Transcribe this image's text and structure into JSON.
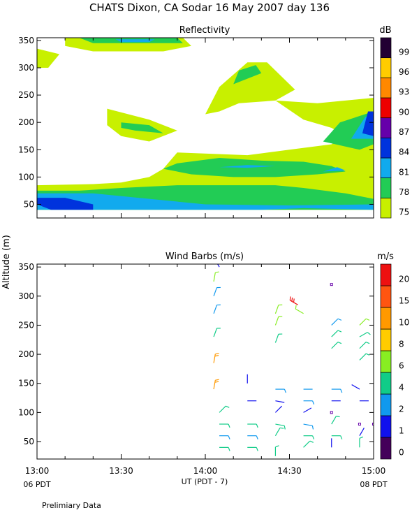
{
  "title": "CHATS Dixon, CA  Sodar  16 May 2007  day 136",
  "footer_note": "Prelimiary Data",
  "shared_ylabel": "Altitude  (m)",
  "xlabel": "UT  (PDT - 7)",
  "x_ticks": [
    "13:00",
    "13:30",
    "14:00",
    "14:30",
    "15:00"
  ],
  "x_start_label": "06 PDT",
  "x_end_label": "08 PDT",
  "chart_data": [
    {
      "type": "heatmap",
      "title": "Reflectivity",
      "xlim": [
        "13:00",
        "15:00"
      ],
      "ylim": [
        25,
        355
      ],
      "y_ticks": [
        50,
        100,
        150,
        200,
        250,
        300,
        350
      ],
      "colorbar": {
        "unit": "dB",
        "labels": [
          75,
          78,
          81,
          84,
          87,
          90,
          93,
          96,
          99
        ],
        "colors": [
          "#c8f000",
          "#22cc55",
          "#11aaee",
          "#0033dd",
          "#6600aa",
          "#ee0000",
          "#ff8800",
          "#ffcc00",
          "#220033"
        ]
      },
      "contours": [
        {
          "level": 75,
          "color": "#c8f000",
          "points": [
            [
              "13:00",
              40
            ],
            [
              "15:00",
              40
            ],
            [
              "15:00",
              245
            ],
            [
              "14:40",
              235
            ],
            [
              "14:25",
              240
            ],
            [
              "14:35",
              205
            ],
            [
              "14:45",
              190
            ],
            [
              "14:50",
              175
            ],
            [
              "14:45",
              160
            ],
            [
              "14:30",
              150
            ],
            [
              "14:15",
              140
            ],
            [
              "13:50",
              145
            ],
            [
              "13:45",
              115
            ],
            [
              "13:40",
              100
            ],
            [
              "13:30",
              90
            ],
            [
              "13:20",
              87
            ],
            [
              "13:00",
              85
            ]
          ]
        },
        {
          "level": 75,
          "color": "#c8f000",
          "points": [
            [
              "14:00",
              215
            ],
            [
              "14:05",
              265
            ],
            [
              "14:15",
              310
            ],
            [
              "14:22",
              310
            ],
            [
              "14:32",
              260
            ],
            [
              "14:25",
              240
            ],
            [
              "14:12",
              235
            ],
            [
              "14:05",
              220
            ]
          ]
        },
        {
          "level": 75,
          "color": "#c8f000",
          "points": [
            [
              "13:25",
              225
            ],
            [
              "13:40",
              205
            ],
            [
              "13:50",
              185
            ],
            [
              "13:40",
              165
            ],
            [
              "13:30",
              175
            ],
            [
              "13:25",
              195
            ]
          ]
        },
        {
          "level": 75,
          "color": "#c8f000",
          "points": [
            [
              "13:10",
              355
            ],
            [
              "13:52",
              355
            ],
            [
              "13:55",
              340
            ],
            [
              "13:45",
              330
            ],
            [
              "13:20",
              330
            ],
            [
              "13:10",
              340
            ]
          ]
        },
        {
          "level": 75,
          "color": "#c8f000",
          "points": [
            [
              "13:00",
              335
            ],
            [
              "13:08",
              325
            ],
            [
              "13:04",
              300
            ],
            [
              "13:00",
              300
            ]
          ]
        },
        {
          "level": 78,
          "color": "#22cc55",
          "points": [
            [
              "13:00",
              40
            ],
            [
              "15:00",
              40
            ],
            [
              "15:00",
              60
            ],
            [
              "14:50",
              70
            ],
            [
              "14:35",
              80
            ],
            [
              "14:25",
              85
            ],
            [
              "14:10",
              85
            ],
            [
              "13:50",
              85
            ],
            [
              "13:30",
              80
            ],
            [
              "13:15",
              75
            ],
            [
              "13:00",
              75
            ]
          ]
        },
        {
          "level": 78,
          "color": "#22cc55",
          "points": [
            [
              "13:50",
              125
            ],
            [
              "14:05",
              135
            ],
            [
              "14:20",
              130
            ],
            [
              "14:35",
              128
            ],
            [
              "14:45",
              120
            ],
            [
              "14:50",
              110
            ],
            [
              "14:40",
              105
            ],
            [
              "14:25",
              100
            ],
            [
              "14:10",
              100
            ],
            [
              "13:55",
              105
            ],
            [
              "13:45",
              115
            ]
          ]
        },
        {
          "level": 78,
          "color": "#22cc55",
          "points": [
            [
              "14:42",
              165
            ],
            [
              "14:48",
              200
            ],
            [
              "15:00",
              220
            ],
            [
              "15:00",
              160
            ],
            [
              "14:55",
              150
            ]
          ]
        },
        {
          "level": 78,
          "color": "#22cc55",
          "points": [
            [
              "13:30",
              200
            ],
            [
              "13:40",
              195
            ],
            [
              "13:45",
              180
            ],
            [
              "13:35",
              185
            ],
            [
              "13:30",
              190
            ]
          ]
        },
        {
          "level": 78,
          "color": "#22cc55",
          "points": [
            [
              "14:10",
              270
            ],
            [
              "14:20",
              290
            ],
            [
              "14:18",
              305
            ],
            [
              "14:12",
              295
            ]
          ]
        },
        {
          "level": 78,
          "color": "#22cc55",
          "points": [
            [
              "13:15",
              355
            ],
            [
              "13:50",
              355
            ],
            [
              "13:52",
              345
            ],
            [
              "13:20",
              345
            ]
          ]
        },
        {
          "level": 81,
          "color": "#11aaee",
          "points": [
            [
              "13:00",
              40
            ],
            [
              "14:20",
              40
            ],
            [
              "14:35",
              43
            ],
            [
              "15:00",
              40
            ],
            [
              "15:00",
              50
            ],
            [
              "14:30",
              48
            ],
            [
              "14:00",
              50
            ],
            [
              "13:40",
              60
            ],
            [
              "13:20",
              70
            ],
            [
              "13:00",
              70
            ]
          ]
        },
        {
          "level": 81,
          "color": "#11aaee",
          "points": [
            [
              "14:05",
              118
            ],
            [
              "14:15",
              122
            ],
            [
              "14:25",
              120
            ],
            [
              "14:15",
              117
            ]
          ]
        },
        {
          "level": 81,
          "color": "#11aaee",
          "points": [
            [
              "14:42",
              110
            ],
            [
              "14:47",
              118
            ],
            [
              "14:50",
              112
            ]
          ]
        },
        {
          "level": 81,
          "color": "#11aaee",
          "points": [
            [
              "14:52",
              170
            ],
            [
              "14:57",
              210
            ],
            [
              "15:00",
              215
            ],
            [
              "15:00",
              170
            ]
          ]
        },
        {
          "level": 81,
          "color": "#11aaee",
          "points": [
            [
              "13:28",
              352
            ],
            [
              "13:42",
              352
            ],
            [
              "13:40",
              347
            ],
            [
              "13:30",
              347
            ]
          ]
        },
        {
          "level": 84,
          "color": "#0033dd",
          "points": [
            [
              "13:00",
              62
            ],
            [
              "13:10",
              62
            ],
            [
              "13:20",
              50
            ],
            [
              "13:20",
              40
            ],
            [
              "13:05",
              40
            ],
            [
              "13:00",
              50
            ]
          ]
        },
        {
          "level": 84,
          "color": "#0033dd",
          "points": [
            [
              "14:56",
              180
            ],
            [
              "14:58",
              220
            ],
            [
              "15:00",
              220
            ],
            [
              "15:00",
              175
            ]
          ]
        }
      ]
    },
    {
      "type": "scatter",
      "title": "Wind Barbs (m/s)",
      "xlim": [
        "13:00",
        "15:00"
      ],
      "ylim": [
        20,
        355
      ],
      "y_ticks": [
        50,
        100,
        150,
        200,
        250,
        300,
        350
      ],
      "colorbar": {
        "unit": "m/s",
        "labels": [
          0,
          1,
          2,
          4,
          6,
          8,
          10,
          15,
          20
        ],
        "colors": [
          "#44005a",
          "#1111ee",
          "#1199ee",
          "#11cc88",
          "#88ee22",
          "#ffcc00",
          "#ff9900",
          "#ff5511",
          "#ee1111"
        ]
      },
      "barbs": [
        {
          "time": "14:05",
          "alt": 40,
          "speed": 4,
          "dir": 90
        },
        {
          "time": "14:05",
          "alt": 60,
          "speed": 3,
          "dir": 90
        },
        {
          "time": "14:05",
          "alt": 80,
          "speed": 4,
          "dir": 90
        },
        {
          "time": "14:05",
          "alt": 100,
          "speed": 5,
          "dir": 45
        },
        {
          "time": "14:03",
          "alt": 140,
          "speed": 12,
          "dir": 10
        },
        {
          "time": "14:03",
          "alt": 185,
          "speed": 10,
          "dir": 10
        },
        {
          "time": "14:03",
          "alt": 230,
          "speed": 4,
          "dir": 20
        },
        {
          "time": "14:03",
          "alt": 270,
          "speed": 3,
          "dir": 20
        },
        {
          "time": "14:03",
          "alt": 300,
          "speed": 3,
          "dir": 20
        },
        {
          "time": "14:03",
          "alt": 325,
          "speed": 6,
          "dir": 10
        },
        {
          "time": "14:05",
          "alt": 350,
          "speed": 1,
          "dir": 330
        },
        {
          "time": "14:15",
          "alt": 40,
          "speed": 4,
          "dir": 90
        },
        {
          "time": "14:15",
          "alt": 60,
          "speed": 3,
          "dir": 90
        },
        {
          "time": "14:15",
          "alt": 80,
          "speed": 4,
          "dir": 90
        },
        {
          "time": "14:15",
          "alt": 120,
          "speed": 1,
          "dir": 90
        },
        {
          "time": "14:15",
          "alt": 150,
          "speed": 1,
          "dir": 0
        },
        {
          "time": "14:25",
          "alt": 25,
          "speed": 4,
          "dir": 0
        },
        {
          "time": "14:25",
          "alt": 60,
          "speed": 4,
          "dir": 30
        },
        {
          "time": "14:25",
          "alt": 80,
          "speed": 4,
          "dir": 100
        },
        {
          "time": "14:25",
          "alt": 100,
          "speed": 1,
          "dir": 45
        },
        {
          "time": "14:25",
          "alt": 120,
          "speed": 1,
          "dir": 100
        },
        {
          "time": "14:25",
          "alt": 140,
          "speed": 3,
          "dir": 90
        },
        {
          "time": "14:25",
          "alt": 220,
          "speed": 5,
          "dir": 20
        },
        {
          "time": "14:25",
          "alt": 250,
          "speed": 6,
          "dir": 20
        },
        {
          "time": "14:25",
          "alt": 270,
          "speed": 6,
          "dir": 20
        },
        {
          "time": "14:35",
          "alt": 40,
          "speed": 4,
          "dir": 45
        },
        {
          "time": "14:35",
          "alt": 60,
          "speed": 4,
          "dir": 90
        },
        {
          "time": "14:35",
          "alt": 80,
          "speed": 3,
          "dir": 100
        },
        {
          "time": "14:35",
          "alt": 100,
          "speed": 1,
          "dir": 60
        },
        {
          "time": "14:35",
          "alt": 120,
          "speed": 3,
          "dir": 90
        },
        {
          "time": "14:35",
          "alt": 140,
          "speed": 2,
          "dir": 90
        },
        {
          "time": "14:35",
          "alt": 270,
          "speed": 6,
          "dir": 300
        },
        {
          "time": "14:33",
          "alt": 285,
          "speed": 20,
          "dir": 300
        },
        {
          "time": "14:45",
          "alt": 40,
          "speed": 1,
          "dir": 0
        },
        {
          "time": "14:45",
          "alt": 60,
          "speed": 4,
          "dir": 90
        },
        {
          "time": "14:45",
          "alt": 80,
          "speed": 4,
          "dir": 30
        },
        {
          "time": "14:45",
          "alt": 120,
          "speed": 1,
          "dir": 90
        },
        {
          "time": "14:45",
          "alt": 140,
          "speed": 3,
          "dir": 90
        },
        {
          "time": "14:45",
          "alt": 210,
          "speed": 5,
          "dir": 45
        },
        {
          "time": "14:45",
          "alt": 230,
          "speed": 5,
          "dir": 45
        },
        {
          "time": "14:45",
          "alt": 250,
          "speed": 3,
          "dir": 45
        },
        {
          "time": "14:45",
          "alt": 320,
          "speed": 0,
          "dir": 0
        },
        {
          "time": "14:45",
          "alt": 100,
          "speed": 0,
          "dir": 0
        },
        {
          "time": "14:55",
          "alt": 40,
          "speed": 4,
          "dir": 0
        },
        {
          "time": "14:55",
          "alt": 60,
          "speed": 1,
          "dir": 30
        },
        {
          "time": "14:55",
          "alt": 80,
          "speed": 0,
          "dir": 0
        },
        {
          "time": "14:55",
          "alt": 120,
          "speed": 1,
          "dir": 90
        },
        {
          "time": "14:55",
          "alt": 140,
          "speed": 1,
          "dir": 300
        },
        {
          "time": "14:55",
          "alt": 190,
          "speed": 4,
          "dir": 45
        },
        {
          "time": "14:55",
          "alt": 210,
          "speed": 4,
          "dir": 45
        },
        {
          "time": "14:55",
          "alt": 230,
          "speed": 5,
          "dir": 60
        },
        {
          "time": "14:55",
          "alt": 250,
          "speed": 6,
          "dir": 45
        },
        {
          "time": "15:00",
          "alt": 80,
          "speed": 0,
          "dir": 0
        }
      ]
    }
  ]
}
